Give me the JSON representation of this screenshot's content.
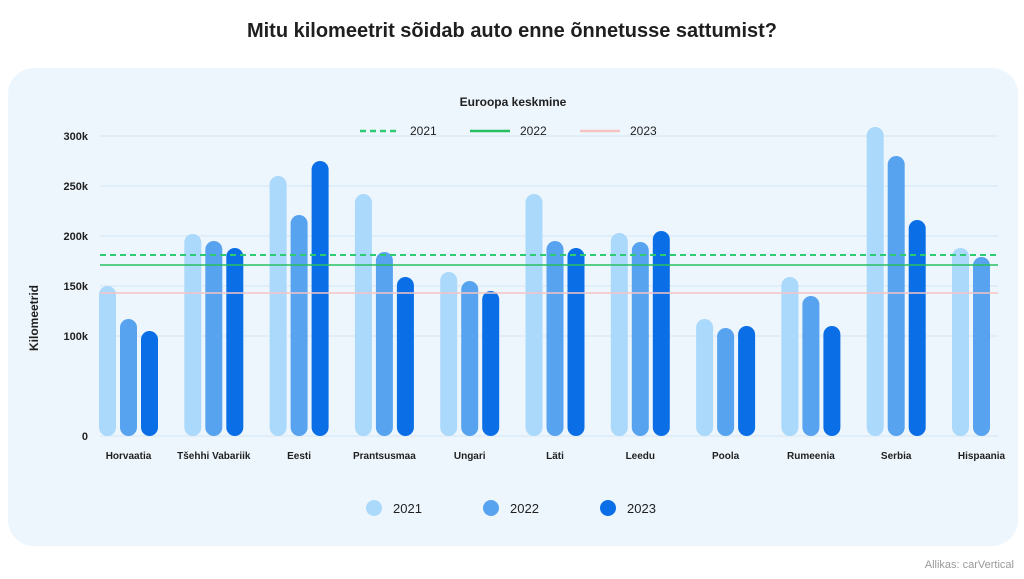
{
  "page": {
    "title": "Mitu kilomeetrit sõidab auto enne õnnetusse sattumist?",
    "source": "Allikas: carVertical"
  },
  "colors": {
    "background": "#ffffff",
    "card": "#edf6fd",
    "grid": "#d3e6f5",
    "avg_2021": "#2ecc71",
    "avg_2022": "#27c061",
    "avg_2023": "#f6c3c3",
    "bar_2021": "#aad9fb",
    "bar_2022": "#58a3ef",
    "bar_2023": "#0a6fe6"
  },
  "chart_data": {
    "type": "bar",
    "title": "",
    "xlabel": "",
    "ylabel": "Kilomeetrid",
    "ylim": [
      0,
      310000
    ],
    "yticks": [
      {
        "value": 0,
        "label": "0"
      },
      {
        "value": 100000,
        "label": "100k"
      },
      {
        "value": 150000,
        "label": "150k"
      },
      {
        "value": 200000,
        "label": "200k"
      },
      {
        "value": 250000,
        "label": "250k"
      },
      {
        "value": 300000,
        "label": "300k"
      }
    ],
    "grid": true,
    "categories": [
      "Horvaatia",
      "Tšehhi Vabariik",
      "Eesti",
      "Prantsusmaa",
      "Ungari",
      "Läti",
      "Leedu",
      "Poola",
      "Rumeenia",
      "Serbia",
      "Hispaania"
    ],
    "series": [
      {
        "name": "2021",
        "values": [
          150000,
          202000,
          260000,
          242000,
          164000,
          242000,
          203000,
          117000,
          159000,
          309000,
          188000
        ]
      },
      {
        "name": "2022",
        "values": [
          117000,
          195000,
          221000,
          184000,
          155000,
          195000,
          194000,
          108000,
          140000,
          280000,
          179000
        ]
      },
      {
        "name": "2023",
        "values": [
          105000,
          188000,
          275000,
          159000,
          145000,
          188000,
          205000,
          110000,
          110000,
          216000,
          null
        ]
      }
    ],
    "reference_lines_title": "Euroopa keskmine",
    "reference_lines": [
      {
        "name": "2021",
        "value": 181000,
        "style": "dashed"
      },
      {
        "name": "2022",
        "value": 171000,
        "style": "solid"
      },
      {
        "name": "2023",
        "value": 143000,
        "style": "solid"
      }
    ],
    "legend_placement": "bottom"
  }
}
